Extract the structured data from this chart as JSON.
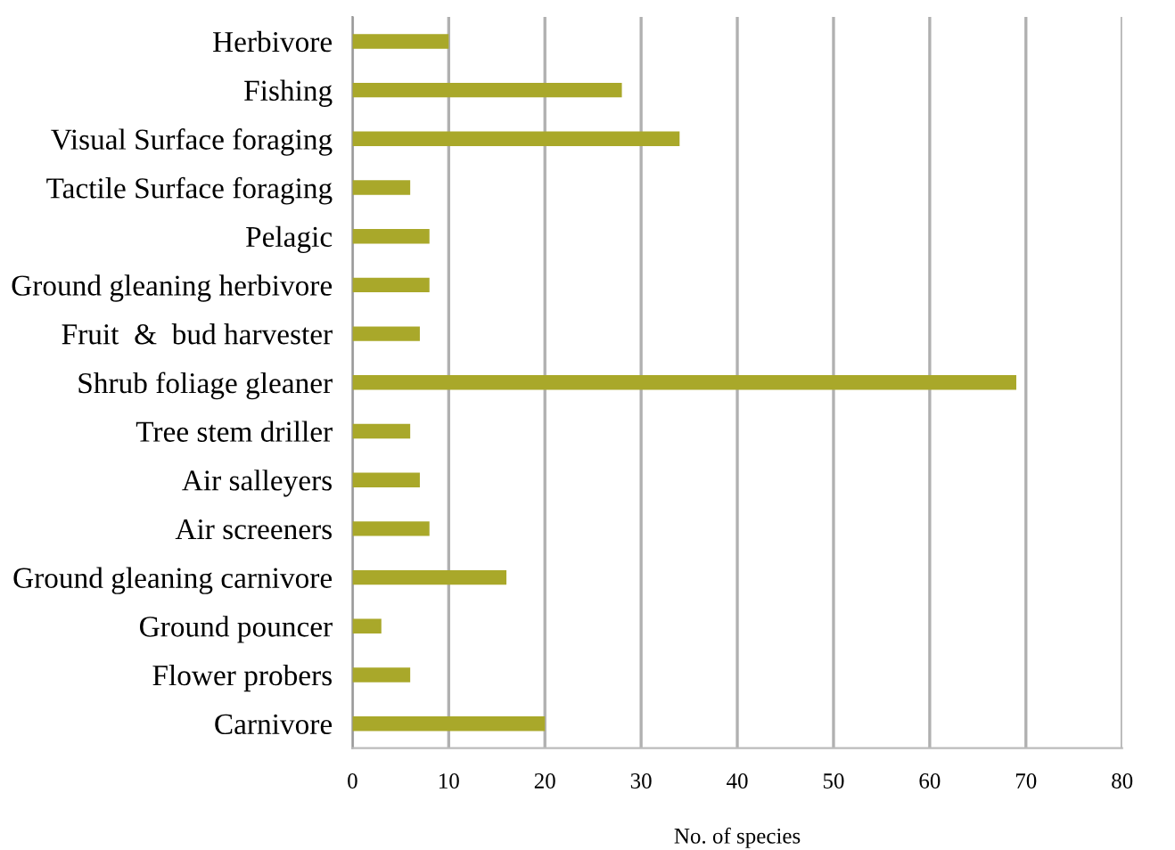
{
  "chart_data": {
    "type": "bar",
    "orientation": "horizontal",
    "xlabel": "No. of species",
    "categories": [
      "Herbivore",
      "Fishing",
      "Visual Surface foraging",
      "Tactile Surface foraging",
      "Pelagic",
      "Ground gleaning herbivore",
      "Fruit  &  bud harvester",
      "Shrub foliage gleaner",
      "Tree stem driller",
      "Air salleyers",
      "Air screeners",
      "Ground gleaning carnivore",
      "Ground pouncer",
      "Flower probers",
      "Carnivore"
    ],
    "values": [
      10,
      28,
      34,
      6,
      8,
      8,
      7,
      69,
      6,
      7,
      8,
      16,
      3,
      6,
      20
    ],
    "color": "#a9a82a",
    "xlim": [
      0,
      80
    ],
    "xticks": [
      0,
      10,
      20,
      30,
      40,
      50,
      60,
      70,
      80
    ],
    "grid": "x",
    "legend": false
  }
}
